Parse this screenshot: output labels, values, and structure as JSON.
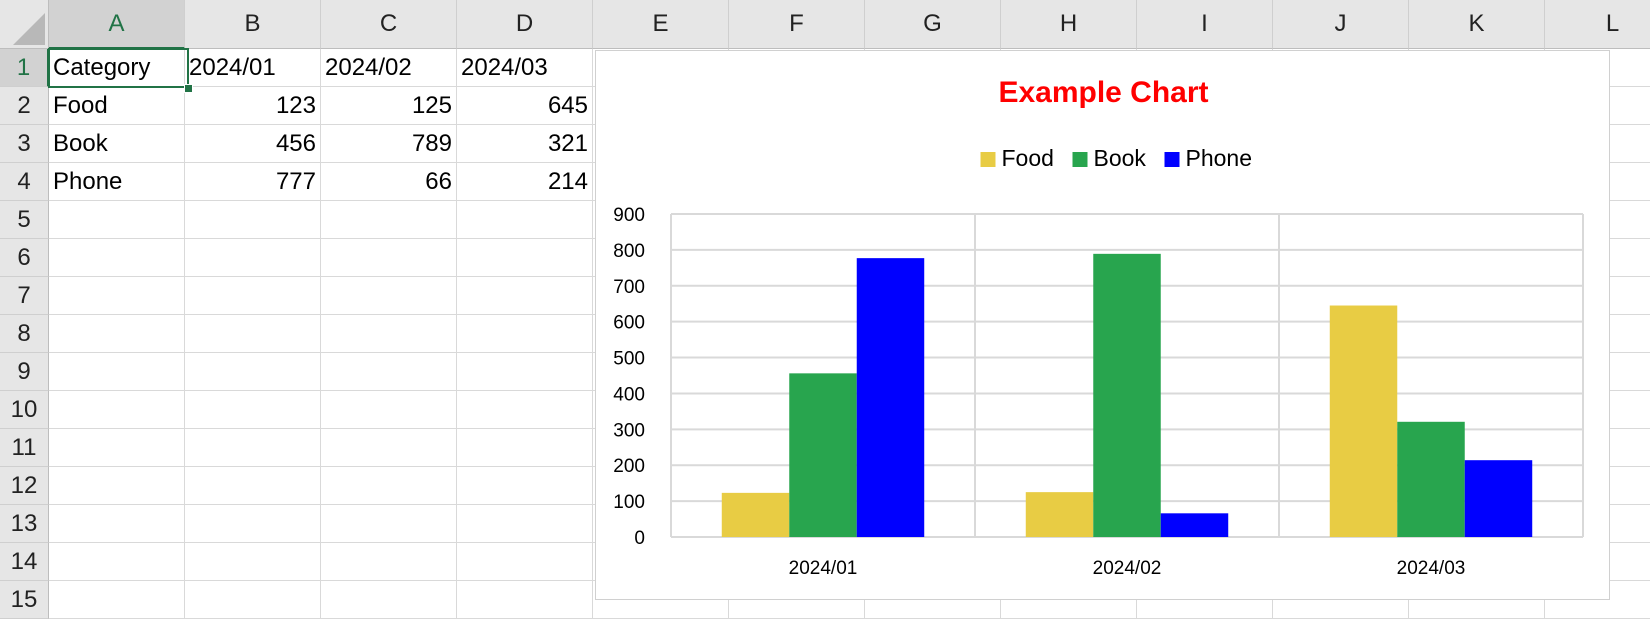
{
  "sheet": {
    "columns": [
      "A",
      "B",
      "C",
      "D",
      "E",
      "F",
      "G",
      "H",
      "I",
      "J",
      "K",
      "L"
    ],
    "rows": [
      "1",
      "2",
      "3",
      "4",
      "5",
      "6",
      "7",
      "8",
      "9",
      "10",
      "11",
      "12",
      "13",
      "14",
      "15"
    ],
    "active_cell": "A1",
    "cells": {
      "A1": "Category",
      "B1": "2024/01",
      "C1": "2024/02",
      "D1": "2024/03",
      "A2": "Food",
      "B2": "123",
      "C2": "125",
      "D2": "645",
      "A3": "Book",
      "B3": "456",
      "C3": "789",
      "D3": "321",
      "A4": "Phone",
      "B4": "777",
      "C4": "66",
      "D4": "214"
    }
  },
  "chart_data": {
    "type": "bar",
    "title": "Example Chart",
    "title_color": "#ff0000",
    "categories": [
      "2024/01",
      "2024/02",
      "2024/03"
    ],
    "series": [
      {
        "name": "Food",
        "color": "#e8cc44",
        "values": [
          123,
          125,
          645
        ]
      },
      {
        "name": "Book",
        "color": "#28a54e",
        "values": [
          456,
          789,
          321
        ]
      },
      {
        "name": "Phone",
        "color": "#0000ff",
        "values": [
          777,
          66,
          214
        ]
      }
    ],
    "ylim": [
      0,
      900
    ],
    "yticks": [
      0,
      100,
      200,
      300,
      400,
      500,
      600,
      700,
      800,
      900
    ],
    "xlabel": "",
    "ylabel": "",
    "grid": true,
    "legend_position": "top"
  }
}
